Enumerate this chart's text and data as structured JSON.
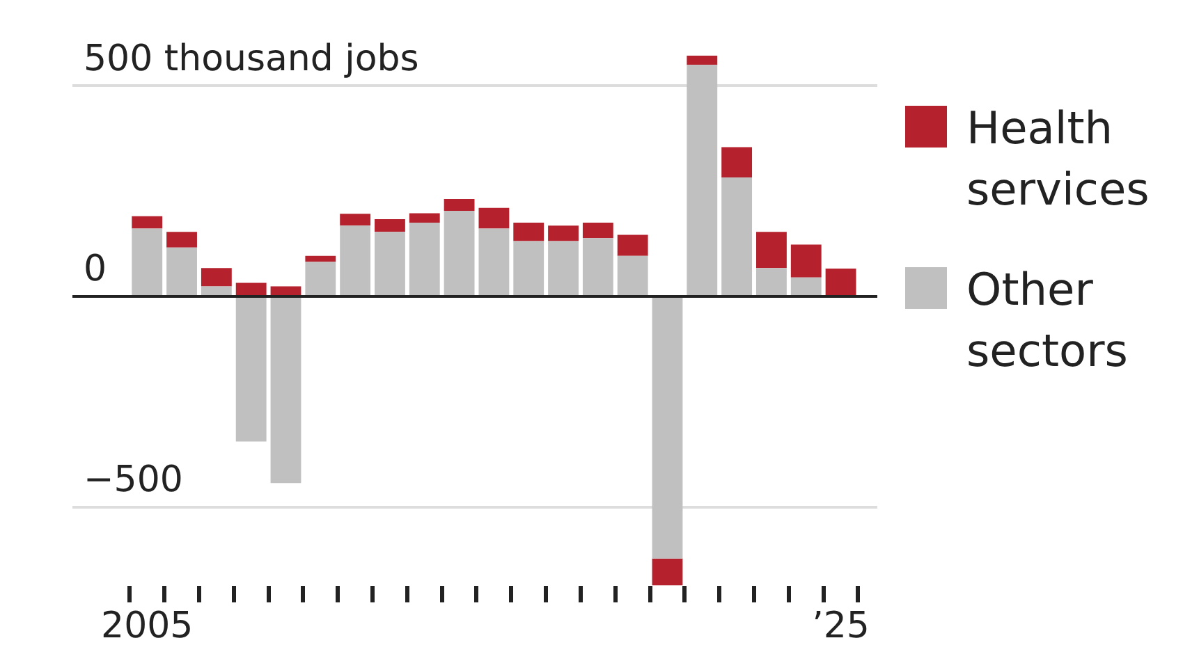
{
  "chart_data": {
    "type": "bar",
    "stacked": true,
    "categories": [
      "2005",
      null,
      null,
      null,
      null,
      null,
      null,
      null,
      null,
      null,
      null,
      null,
      null,
      null,
      null,
      null,
      null,
      null,
      null,
      null,
      "’25"
    ],
    "series": [
      {
        "name": "Other sectors",
        "color": "#c0c0c0",
        "values": [
          161,
          116,
          24,
          -344,
          -443,
          82,
          168,
          153,
          175,
          203,
          161,
          131,
          131,
          138,
          96,
          -622,
          549,
          282,
          67,
          45,
          0
        ]
      },
      {
        "name": "Health services",
        "color": "#b5222d",
        "values": [
          29,
          37,
          43,
          32,
          24,
          14,
          28,
          30,
          22,
          28,
          49,
          44,
          37,
          37,
          50,
          -64,
          22,
          72,
          86,
          78,
          66
        ]
      }
    ],
    "ylim": [
      -686,
      571
    ],
    "yticks": [
      {
        "value": -500,
        "label": "−500"
      },
      0,
      {
        "value": 500,
        "label": "500 thousand jobs"
      }
    ],
    "grid": "y",
    "legend": "right"
  }
}
